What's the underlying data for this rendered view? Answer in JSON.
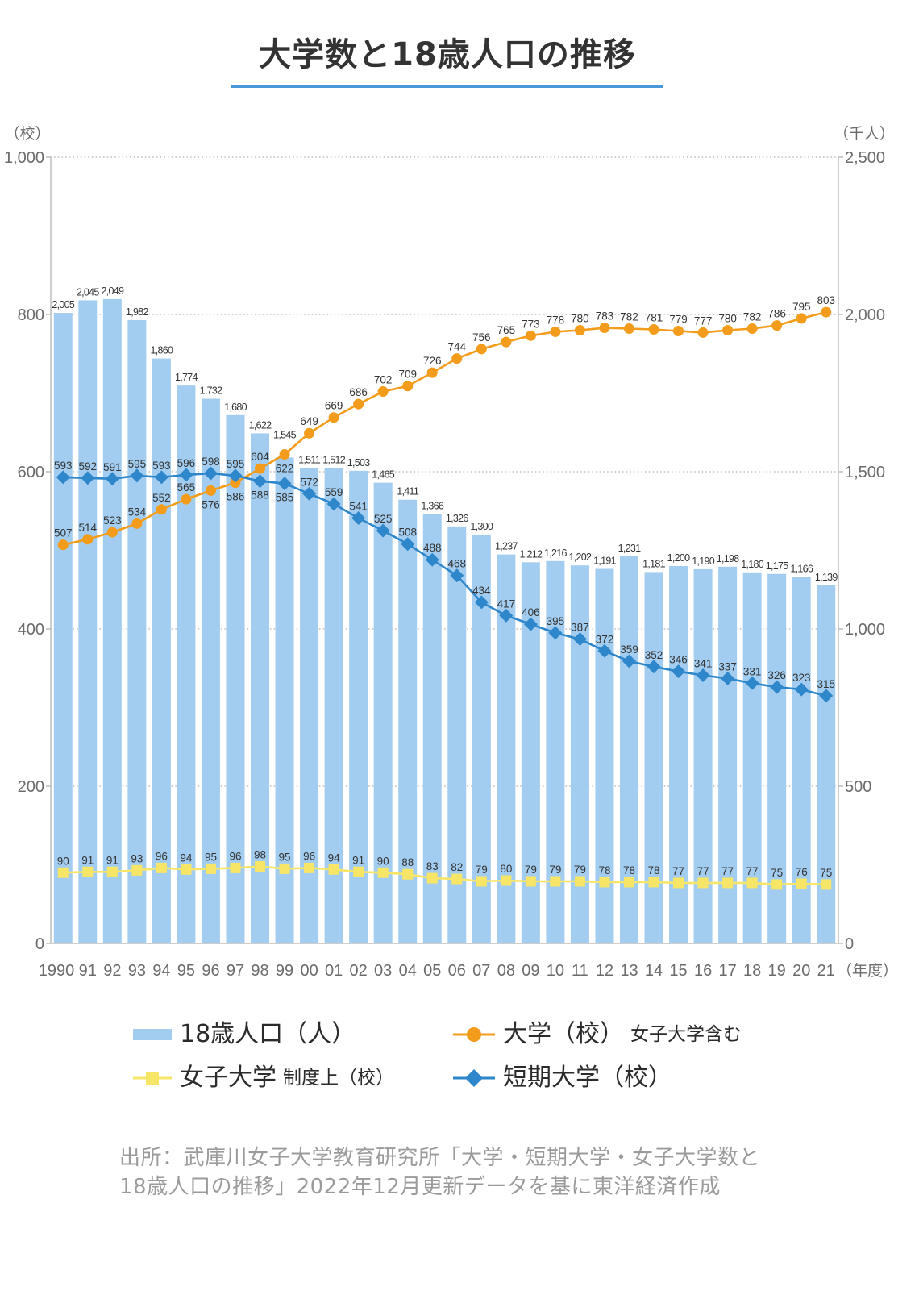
{
  "theme": {
    "accent": "#4a97da"
  },
  "source": {
    "line1": "出所：武庫川女子大学教育研究所「大学・短期大学・女子大学数と",
    "line2": "18歳人口の推移」2022年12月更新データを基に東洋経済作成"
  },
  "chart_data": {
    "type": "bar",
    "title": "大学数と18歳人口の推移",
    "categories": [
      "1990",
      "91",
      "92",
      "93",
      "94",
      "95",
      "96",
      "97",
      "98",
      "99",
      "00",
      "01",
      "02",
      "03",
      "04",
      "05",
      "06",
      "07",
      "08",
      "09",
      "10",
      "11",
      "12",
      "13",
      "14",
      "15",
      "16",
      "17",
      "18",
      "19",
      "20",
      "21"
    ],
    "xlabel": "（年度）",
    "y_left": {
      "label": "（校）",
      "range": [
        0,
        1000
      ],
      "ticks": [
        "0",
        "200",
        "400",
        "600",
        "800",
        "1,000"
      ]
    },
    "y_right": {
      "label": "（千人）",
      "range": [
        0,
        2500
      ],
      "ticks": [
        "0",
        "500",
        "1,000",
        "1,500",
        "2,000",
        "2,500"
      ]
    },
    "grid": true,
    "legend_position": "bottom",
    "data_labels": true,
    "series": [
      {
        "name": "18歳人口（人）",
        "type": "bar",
        "axis": "right",
        "color": "#a3cdf0",
        "values": [
          2005,
          2045,
          2049,
          1982,
          1860,
          1774,
          1732,
          1680,
          1622,
          1545,
          1511,
          1512,
          1503,
          1465,
          1411,
          1366,
          1326,
          1300,
          1237,
          1212,
          1216,
          1202,
          1191,
          1231,
          1181,
          1200,
          1190,
          1198,
          1180,
          1175,
          1166,
          1139
        ]
      },
      {
        "name": "大学（校）",
        "note": "女子大学含む",
        "type": "line",
        "marker": "circle",
        "axis": "left",
        "color": "#f39c1b",
        "values": [
          507,
          514,
          523,
          534,
          552,
          565,
          576,
          586,
          604,
          622,
          649,
          669,
          686,
          702,
          709,
          726,
          744,
          756,
          765,
          773,
          778,
          780,
          783,
          782,
          781,
          779,
          777,
          780,
          782,
          786,
          795,
          803
        ]
      },
      {
        "name": "女子大学",
        "note": "制度上（校）",
        "type": "line",
        "marker": "square",
        "axis": "left",
        "color": "#f6e566",
        "values": [
          90,
          91,
          91,
          93,
          96,
          94,
          95,
          96,
          98,
          95,
          96,
          94,
          91,
          90,
          88,
          83,
          82,
          79,
          80,
          79,
          79,
          79,
          78,
          78,
          78,
          77,
          77,
          77,
          77,
          75,
          76,
          75
        ]
      },
      {
        "name": "短期大学（校）",
        "type": "line",
        "marker": "diamond",
        "axis": "left",
        "color": "#2f87cb",
        "values": [
          593,
          592,
          591,
          595,
          593,
          596,
          598,
          595,
          588,
          585,
          572,
          559,
          541,
          525,
          508,
          488,
          468,
          434,
          417,
          406,
          395,
          387,
          372,
          359,
          352,
          346,
          341,
          337,
          331,
          326,
          323,
          315
        ]
      }
    ]
  }
}
